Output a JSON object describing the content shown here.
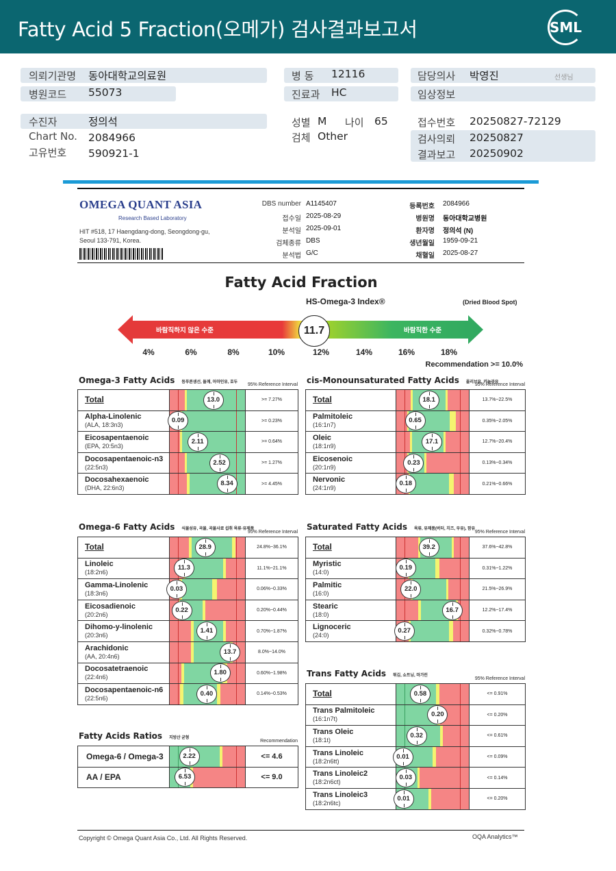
{
  "header": {
    "title": "Fatty Acid 5 Fraction(오메가) 검사결과보고서",
    "logo": "SML",
    "bg_color": "#0b6670"
  },
  "info": {
    "institution_label": "의뢰기관명",
    "institution": "동아대학교의료원",
    "hospital_code_label": "병원코드",
    "hospital_code": "55073",
    "ward_label": "병 동",
    "ward": "12116",
    "dept_label": "진료과",
    "dept": "HC",
    "doctor_label": "담당의사",
    "doctor": "박영진",
    "doctor_suffix": "선생님",
    "clinical_label": "임상정보",
    "clinical": "",
    "patient_label": "수진자",
    "patient": "정의석",
    "chart_label": "Chart No.",
    "chart": "2084966",
    "uid_label": "고유번호",
    "uid": "590921-1",
    "sex_label": "성별",
    "sex": "M",
    "age_label": "나이",
    "age": "65",
    "specimen_label": "검체",
    "specimen": "Other",
    "reception_label": "접수번호",
    "reception": "20250827-72129",
    "request_label": "검사의뢰",
    "request": "20250827",
    "report_label": "결과보고",
    "report": "20250902"
  },
  "lab": {
    "name": "OMEGA QUANT ASIA",
    "tagline": "Research Based Laboratory",
    "address1": "HIT #518, 17 Haengdang-dong, Seongdong-gu,",
    "address2": "Seoul 133-791, Korea.",
    "fields_left": [
      {
        "label": "DBS number",
        "value": "A1145407"
      },
      {
        "label": "접수일",
        "value": "2025-08-29"
      },
      {
        "label": "분석일",
        "value": "2025-09-01"
      },
      {
        "label": "검체종류",
        "value": "DBS"
      },
      {
        "label": "분석법",
        "value": "G/C"
      }
    ],
    "fields_right": [
      {
        "label": "등록번호",
        "value": "2084966"
      },
      {
        "label": "병원명",
        "value": "동아대학교병원"
      },
      {
        "label": "환자명",
        "value": "정의석 (N)"
      },
      {
        "label": "생년월일",
        "value": "1959-09-21"
      },
      {
        "label": "채혈일",
        "value": "2025-08-27"
      }
    ]
  },
  "index": {
    "title": "Fatty Acid Fraction",
    "name": "HS-Omega-3 Index®",
    "sample": "(Dried Blood Spot)",
    "low_label": "바람직하지 않은 수준",
    "high_label": "바람직한 수준",
    "value": "11.7",
    "ticks": [
      "4%",
      "6%",
      "8%",
      "10%",
      "12%",
      "14%",
      "16%",
      "18%"
    ],
    "recommendation": "Recommendation  >= 10.0%"
  },
  "panels": {
    "omega3": {
      "title": "Omega-3 Fatty Acids",
      "foods": "등푸른생선, 들깨, 아마인유, 호두",
      "ref_header": "95% Reference Interval",
      "rows": [
        {
          "name": "Total",
          "sub": "",
          "value": "13.0",
          "ref": ">= 7.27%"
        },
        {
          "name": "Alpha-Linolenic",
          "sub": "(ALA, 18:3n3)",
          "value": "0.09",
          "ref": ">= 0.23%"
        },
        {
          "name": "Eicosapentaenoic",
          "sub": "(EPA, 20:5n3)",
          "value": "2.11",
          "ref": ">= 0.64%"
        },
        {
          "name": "Docosapentaenoic-n3",
          "sub": "(22:5n3)",
          "value": "2.52",
          "ref": ">= 1.27%"
        },
        {
          "name": "Docosahexaenoic",
          "sub": "(DHA, 22:6n3)",
          "value": "8.34",
          "ref": ">= 4.45%"
        }
      ]
    },
    "cismono": {
      "title": "cis-Monounsaturated Fatty Acids",
      "foods": "올리브유, 카놀라유",
      "ref_header": "95% Reference Interval",
      "rows": [
        {
          "name": "Total",
          "sub": "",
          "value": "18.1",
          "ref": "13.7%~22.5%"
        },
        {
          "name": "Palmitoleic",
          "sub": "(16:1n7)",
          "value": "0.65",
          "ref": "0.35%~2.05%"
        },
        {
          "name": "Oleic",
          "sub": "(18:1n9)",
          "value": "17.1",
          "ref": "12.7%~20.4%"
        },
        {
          "name": "Eicosenoic",
          "sub": "(20:1n9)",
          "value": "0.23",
          "ref": "0.13%~0.34%"
        },
        {
          "name": "Nervonic",
          "sub": "(24:1n9)",
          "value": "0.18",
          "ref": "0.21%~0.66%"
        }
      ]
    },
    "omega6": {
      "title": "Omega-6 Fatty Acids",
      "foods": "식물성유, 곡물, 곡물사료 섭취 육류·유제품",
      "ref_header": "95% Reference Interval",
      "rows": [
        {
          "name": "Total",
          "sub": "",
          "value": "28.9",
          "ref": "24.8%~36.1%"
        },
        {
          "name": "Linoleic",
          "sub": "(18:2n6)",
          "value": "11.3",
          "ref": "11.1%~21.1%"
        },
        {
          "name": "Gamma-Linolenic",
          "sub": "(18:3n6)",
          "value": "0.03",
          "ref": "0.06%~0.33%"
        },
        {
          "name": "Eicosadienoic",
          "sub": "(20:2n6)",
          "value": "0.22",
          "ref": "0.20%~0.44%"
        },
        {
          "name": "Dihomo-y-linolenic",
          "sub": "(20:3n6)",
          "value": "1.41",
          "ref": "0.70%~1.87%"
        },
        {
          "name": "Arachidonic",
          "sub": "(AA, 20:4n6)",
          "value": "13.7",
          "ref": "8.0%~14.0%"
        },
        {
          "name": "Docosatetraenoic",
          "sub": "(22:4n6)",
          "value": "1.80",
          "ref": "0.60%~1.98%"
        },
        {
          "name": "Docosapentaenoic-n6",
          "sub": "(22:5n6)",
          "value": "0.40",
          "ref": "0.14%~0.53%"
        }
      ]
    },
    "saturated": {
      "title": "Saturated Fatty Acids",
      "foods": "육류, 유제품(버터, 치즈, 우유), 팜유",
      "ref_header": "95% Reference Interval",
      "rows": [
        {
          "name": "Total",
          "sub": "",
          "value": "39.2",
          "ref": "37.6%~42.8%"
        },
        {
          "name": "Myristic",
          "sub": "(14:0)",
          "value": "0.19",
          "ref": "0.31%~1.22%"
        },
        {
          "name": "Palmitic",
          "sub": "(16:0)",
          "value": "22.0",
          "ref": "21.5%~26.9%"
        },
        {
          "name": "Stearic",
          "sub": "(18:0)",
          "value": "16.7",
          "ref": "12.2%~17.4%"
        },
        {
          "name": "Lignoceric",
          "sub": "(24:0)",
          "value": "0.27",
          "ref": "0.32%~0.78%"
        }
      ]
    },
    "trans": {
      "title": "Trans Fatty Acids",
      "foods": "튀김, 쇼트닝, 마가린",
      "ref_header": "95% Reference Interval",
      "rows": [
        {
          "name": "Total",
          "sub": "",
          "value": "0.58",
          "ref": "<= 0.91%"
        },
        {
          "name": "Trans Palmitoleic",
          "sub": "(16:1n7t)",
          "value": "0.20",
          "ref": "<= 0.20%"
        },
        {
          "name": "Trans Oleic",
          "sub": "(18:1t)",
          "value": "0.32",
          "ref": "<= 0.61%"
        },
        {
          "name": "Trans Linoleic",
          "sub": "(18:2n6tt)",
          "value": "0.01",
          "ref": "<= 0.09%"
        },
        {
          "name": "Trans Linoleic2",
          "sub": "(18:2n6ct)",
          "value": "0.03",
          "ref": "<= 0.14%"
        },
        {
          "name": "Trans Linoleic3",
          "sub": "(18:2n6tc)",
          "value": "0.01",
          "ref": "<= 0.20%"
        }
      ]
    },
    "ratios": {
      "title": "Fatty Acids Ratios",
      "foods": "지방산 균형",
      "ref_header": "Recommendation",
      "rows": [
        {
          "name": "Omega-6 / Omega-3",
          "sub": "",
          "value": "2.22",
          "ref": "<= 4.6"
        },
        {
          "name": "AA / EPA",
          "sub": "",
          "value": "6.53",
          "ref": "<= 9.0"
        }
      ]
    }
  },
  "colors": {
    "low": "#f58585",
    "border": "#f4f470",
    "optimal": "#80d6a2"
  },
  "footer": {
    "copyright": "Copyright © Omega Quant Asia Co., Ltd.  All Rights Reserved.",
    "brand": "OQA Analytics™"
  }
}
